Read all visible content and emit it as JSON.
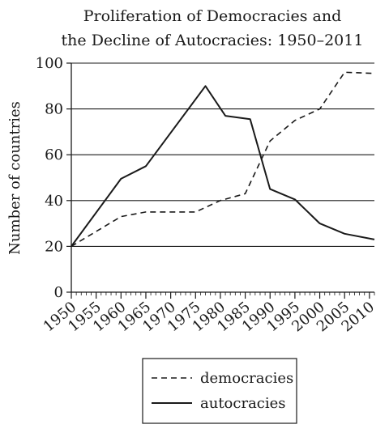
{
  "chart_data": {
    "type": "line",
    "title_lines": [
      "Proliferation of Democracies and",
      "the Decline of Autocracies: 1950–2011"
    ],
    "xlabel": "",
    "ylabel": "Number of countries",
    "xlim": [
      1950,
      2011
    ],
    "ylim": [
      0,
      100
    ],
    "x_ticks": [
      1950,
      1955,
      1960,
      1965,
      1970,
      1975,
      1980,
      1985,
      1990,
      1995,
      2000,
      2005,
      2010
    ],
    "y_ticks": [
      0,
      20,
      40,
      60,
      80,
      100
    ],
    "grid": "horizontal",
    "legend_position": "bottom-center",
    "series": [
      {
        "name": "democracies",
        "style": "dashed",
        "color": "#1a1a1a",
        "x": [
          1950,
          1960,
          1965,
          1975,
          1980,
          1985,
          1990,
          1995,
          2000,
          2005,
          2011
        ],
        "y": [
          20,
          33,
          35,
          35,
          40,
          43,
          66,
          75,
          80,
          96,
          95.5
        ]
      },
      {
        "name": "autocracies",
        "style": "solid",
        "color": "#1a1a1a",
        "x": [
          1950,
          1960,
          1965,
          1977,
          1981,
          1986,
          1990,
          1995,
          2000,
          2005,
          2011
        ],
        "y": [
          20,
          49.5,
          55,
          90,
          77,
          75.5,
          45,
          40.5,
          30,
          25.5,
          23
        ]
      }
    ]
  }
}
